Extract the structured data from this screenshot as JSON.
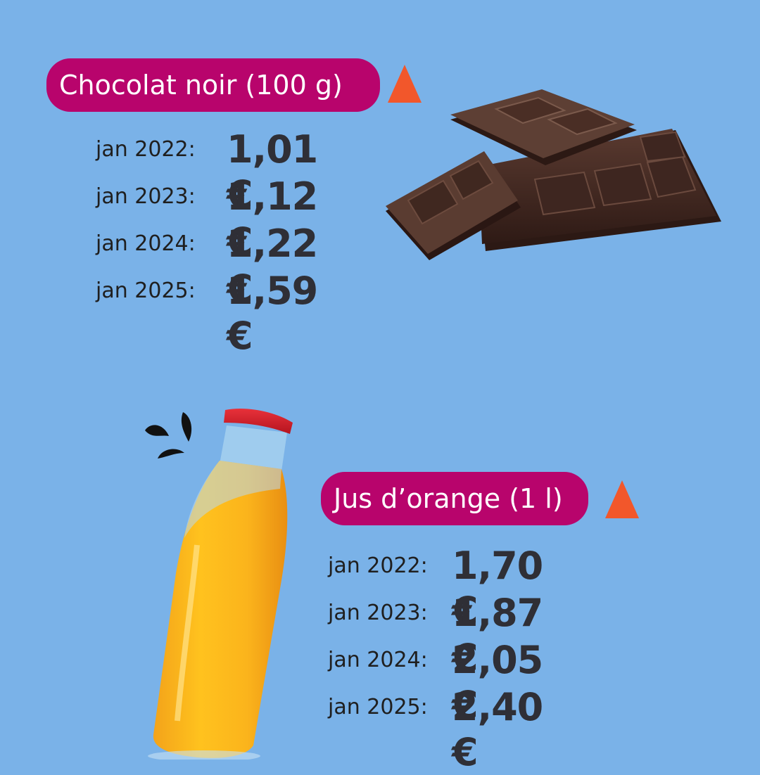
{
  "chocolat": {
    "title": "Chocolat noir (100 g)",
    "prices": [
      {
        "label": "jan 2022:",
        "value": "1,01 €"
      },
      {
        "label": "jan 2023:",
        "value": "1,12 €"
      },
      {
        "label": "jan 2024:",
        "value": "1,22 €"
      },
      {
        "label": "jan 2025:",
        "value": "1,59 €"
      }
    ]
  },
  "jus": {
    "title": "Jus d’orange (1 l)",
    "prices": [
      {
        "label": "jan 2022:",
        "value": "1,70 €"
      },
      {
        "label": "jan 2023:",
        "value": "1,87 €"
      },
      {
        "label": "jan 2024:",
        "value": "2,05 €"
      },
      {
        "label": "jan 2025:",
        "value": "2,40 €"
      }
    ]
  },
  "colors": {
    "background": "#7ab2e8",
    "pill": "#b8046c",
    "triangle": "#f2572b",
    "price_text": "#2f2f36"
  },
  "icons": [
    "up-triangle-icon",
    "chocolate-bar-icon",
    "juice-bottle-icon",
    "splash-icon"
  ]
}
